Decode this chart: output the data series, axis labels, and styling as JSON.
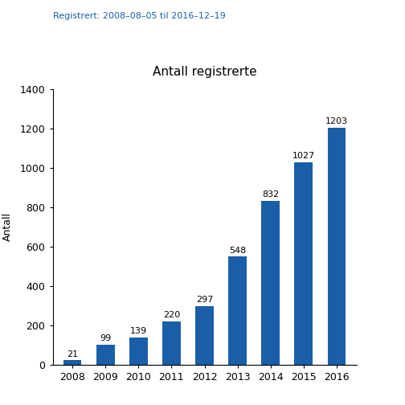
{
  "title": "Antall registrerte",
  "subtitle": "Registrert: 2008–08–05 til 2016–12–19",
  "ylabel": "Antall",
  "categories": [
    "2008",
    "2009",
    "2010",
    "2011",
    "2012",
    "2013",
    "2014",
    "2015",
    "2016"
  ],
  "values": [
    21,
    99,
    139,
    220,
    297,
    548,
    832,
    1027,
    1203
  ],
  "bar_color": "#1A5EA8",
  "ylim": [
    0,
    1400
  ],
  "yticks": [
    0,
    200,
    400,
    600,
    800,
    1000,
    1200,
    1400
  ],
  "title_fontsize": 11,
  "subtitle_fontsize": 8,
  "label_fontsize": 8,
  "tick_fontsize": 9,
  "ylabel_fontsize": 9,
  "subtitle_color": "#1A5EA8",
  "background_color": "#ffffff"
}
